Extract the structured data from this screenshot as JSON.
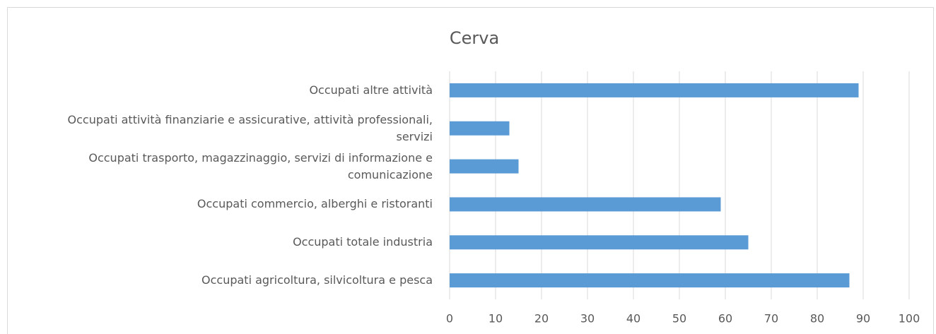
{
  "chart_data": {
    "type": "bar",
    "orientation": "horizontal",
    "title": "Cerva",
    "categories": [
      "Occupati agricoltura, silvicoltura e pesca",
      "Occupati totale industria",
      "Occupati commercio, alberghi e ristoranti",
      "Occupati trasporto, magazzinaggio, servizi di informazione e comunicazione",
      "Occupati attività finanziarie e assicurative, attività professionali, servizi",
      "Occupati altre attività"
    ],
    "values": [
      87,
      65,
      59,
      15,
      13,
      89
    ],
    "color": "#5b9bd5",
    "xlim": [
      0,
      100
    ],
    "xticks": [
      0,
      10,
      20,
      30,
      40,
      50,
      60,
      70,
      80,
      90,
      100
    ],
    "grid": true
  }
}
